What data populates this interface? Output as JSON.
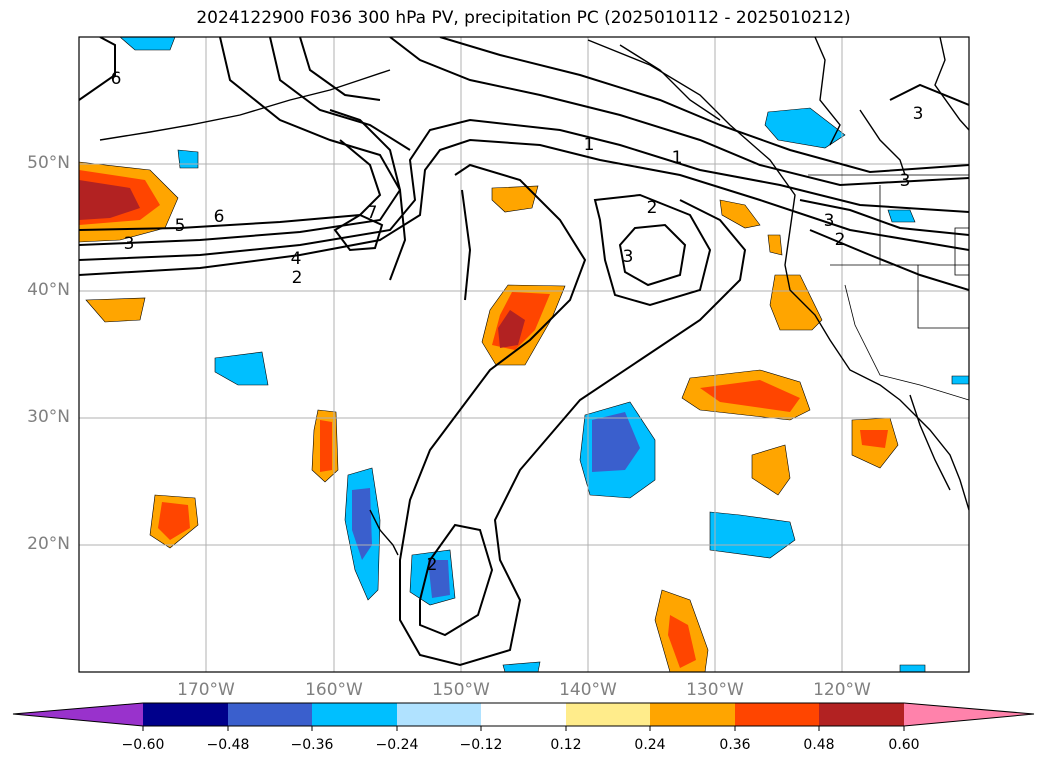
{
  "title": "2024122900 F036 300 hPa PV, precipitation PC (2025010112 - 2025010212)",
  "map": {
    "lon_range": [
      -180,
      -110
    ],
    "lat_range": [
      10,
      60
    ],
    "lat_labels": [
      {
        "value": 20,
        "text": "20°N"
      },
      {
        "value": 30,
        "text": "30°N"
      },
      {
        "value": 40,
        "text": "40°N"
      },
      {
        "value": 50,
        "text": "50°N"
      }
    ],
    "lon_labels": [
      {
        "value": -170,
        "text": "170°W"
      },
      {
        "value": -160,
        "text": "160°W"
      },
      {
        "value": -150,
        "text": "150°W"
      },
      {
        "value": -140,
        "text": "140°W"
      },
      {
        "value": -130,
        "text": "130°W"
      },
      {
        "value": -120,
        "text": "120°W"
      }
    ],
    "gridlines": true
  },
  "pv_contour_labels": [
    "6",
    "6",
    "7",
    "5",
    "3",
    "4",
    "2",
    "1",
    "1",
    "2",
    "3",
    "3",
    "3",
    "3",
    "2",
    "2"
  ],
  "colorbar": {
    "colors": [
      "#9932cc",
      "#00008b",
      "#3a5fcd",
      "#00bfff",
      "#b0e2ff",
      "#ffffff",
      "#ffec8b",
      "#ffa500",
      "#ff4500",
      "#b22222",
      "#ff82ab"
    ],
    "tick_labels": [
      "−0.60",
      "−0.48",
      "−0.36",
      "−0.24",
      "−0.12",
      "0.12",
      "0.24",
      "0.36",
      "0.48",
      "0.60"
    ]
  }
}
